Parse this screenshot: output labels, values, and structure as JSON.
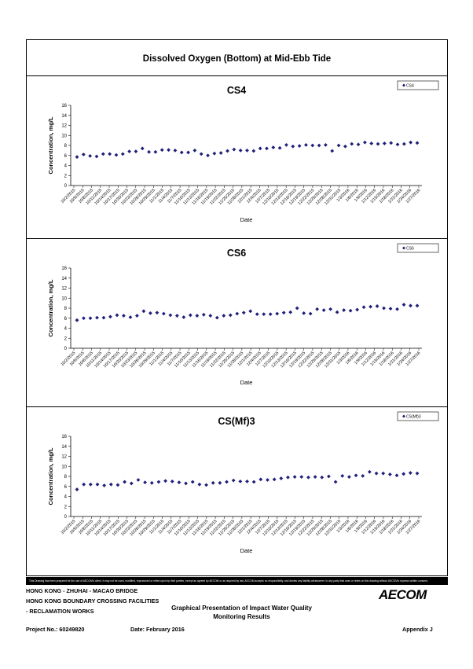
{
  "page_title": "Dissolved Oxygen (Bottom) at Mid-Ebb Tide",
  "chart_data": [
    {
      "type": "scatter",
      "title": "CS4",
      "xlabel": "Date",
      "ylabel": "Concentration, mg/L",
      "ylim": [
        0,
        16
      ],
      "yticks": [
        0,
        2,
        4,
        6,
        8,
        10,
        12,
        14,
        16
      ],
      "grid": false,
      "legend": "top-right",
      "marker_color": "#1f1f7a",
      "x_tick_labels": [
        "10/2/2015",
        "10/5/2015",
        "10/8/2015",
        "10/11/2015",
        "10/14/2015",
        "10/17/2015",
        "10/20/2015",
        "10/23/2015",
        "10/26/2015",
        "10/29/2015",
        "11/1/2015",
        "11/4/2015",
        "11/7/2015",
        "11/10/2015",
        "11/13/2015",
        "11/16/2015",
        "11/19/2015",
        "11/22/2015",
        "11/25/2015",
        "11/28/2015",
        "12/1/2015",
        "12/4/2015",
        "12/7/2015",
        "12/10/2015",
        "12/13/2015",
        "12/16/2015",
        "12/19/2015",
        "12/22/2015",
        "12/25/2015",
        "12/28/2015",
        "12/31/2015",
        "1/3/2016",
        "1/6/2016",
        "1/9/2016",
        "1/12/2016",
        "1/15/2016",
        "1/18/2016",
        "1/21/2016",
        "1/24/2016",
        "1/27/2016"
      ],
      "series": [
        {
          "name": "CS4",
          "values": [
            5.7,
            6.2,
            5.9,
            5.8,
            6.3,
            6.3,
            6.1,
            6.3,
            6.8,
            6.8,
            7.4,
            6.7,
            6.7,
            7.1,
            7.1,
            7.0,
            6.6,
            6.6,
            7.0,
            6.3,
            6.0,
            6.4,
            6.5,
            6.9,
            7.2,
            7.0,
            7.0,
            6.9,
            7.4,
            7.4,
            7.6,
            7.5,
            8.1,
            7.8,
            7.9,
            8.1,
            8.0,
            8.0,
            8.1,
            6.9,
            8.0,
            7.8,
            8.3,
            8.2,
            8.6,
            8.4,
            8.3,
            8.4,
            8.5,
            8.2,
            8.3,
            8.6,
            8.5
          ]
        }
      ]
    },
    {
      "type": "scatter",
      "title": "CS6",
      "xlabel": "Date",
      "ylabel": "Concentration, mg/L",
      "ylim": [
        0,
        16
      ],
      "yticks": [
        0,
        2,
        4,
        6,
        8,
        10,
        12,
        14,
        16
      ],
      "grid": false,
      "legend": "top-right",
      "marker_color": "#1f1f7a",
      "x_tick_labels": [
        "10/2/2015",
        "10/5/2015",
        "10/8/2015",
        "10/11/2015",
        "10/14/2015",
        "10/17/2015",
        "10/20/2015",
        "10/23/2015",
        "10/26/2015",
        "10/29/2015",
        "11/1/2015",
        "11/4/2015",
        "11/7/2015",
        "11/10/2015",
        "11/13/2015",
        "11/16/2015",
        "11/19/2015",
        "11/22/2015",
        "11/25/2015",
        "11/28/2015",
        "12/1/2015",
        "12/4/2015",
        "12/7/2015",
        "12/10/2015",
        "12/13/2015",
        "12/16/2015",
        "12/19/2015",
        "12/22/2015",
        "12/25/2015",
        "12/28/2015",
        "12/31/2015",
        "1/3/2016",
        "1/6/2016",
        "1/9/2016",
        "1/12/2016",
        "1/15/2016",
        "1/18/2016",
        "1/21/2016",
        "1/24/2016",
        "1/27/2016"
      ],
      "series": [
        {
          "name": "CS6",
          "values": [
            5.6,
            6.0,
            6.0,
            6.1,
            6.1,
            6.3,
            6.6,
            6.5,
            6.2,
            6.5,
            7.4,
            7.0,
            7.1,
            6.9,
            6.6,
            6.5,
            6.2,
            6.6,
            6.5,
            6.7,
            6.5,
            6.1,
            6.5,
            6.6,
            6.9,
            7.1,
            7.4,
            6.8,
            6.8,
            6.8,
            6.9,
            7.1,
            7.2,
            8.0,
            7.0,
            6.9,
            7.8,
            7.6,
            7.8,
            7.2,
            7.6,
            7.5,
            7.7,
            8.2,
            8.3,
            8.4,
            8.0,
            7.9,
            7.8,
            8.7,
            8.5,
            8.5
          ]
        }
      ]
    },
    {
      "type": "scatter",
      "title": "CS(Mf)3",
      "xlabel": "Date",
      "ylabel": "Concentration, mg/L",
      "ylim": [
        0,
        16
      ],
      "yticks": [
        0,
        2,
        4,
        6,
        8,
        10,
        12,
        14,
        16
      ],
      "grid": false,
      "legend": "top-right",
      "marker_color": "#1f1f7a",
      "x_tick_labels": [
        "10/2/2015",
        "10/5/2015",
        "10/8/2015",
        "10/11/2015",
        "10/14/2015",
        "10/17/2015",
        "10/20/2015",
        "10/23/2015",
        "10/26/2015",
        "10/29/2015",
        "11/1/2015",
        "11/4/2015",
        "11/7/2015",
        "11/10/2015",
        "11/13/2015",
        "11/16/2015",
        "11/19/2015",
        "11/22/2015",
        "11/25/2015",
        "11/28/2015",
        "12/1/2015",
        "12/4/2015",
        "12/7/2015",
        "12/10/2015",
        "12/13/2015",
        "12/16/2015",
        "12/19/2015",
        "12/22/2015",
        "12/25/2015",
        "12/28/2015",
        "12/31/2015",
        "1/3/2016",
        "1/6/2016",
        "1/9/2016",
        "1/12/2016",
        "1/15/2016",
        "1/18/2016",
        "1/21/2016",
        "1/24/2016",
        "1/27/2016"
      ],
      "series": [
        {
          "name": "CS(Mf)3",
          "values": [
            5.4,
            6.4,
            6.4,
            6.4,
            6.2,
            6.4,
            6.3,
            6.9,
            6.6,
            7.3,
            6.8,
            6.7,
            6.9,
            7.1,
            7.0,
            6.8,
            6.6,
            6.9,
            6.4,
            6.3,
            6.7,
            6.7,
            6.9,
            7.2,
            7.0,
            7.0,
            6.9,
            7.4,
            7.3,
            7.4,
            7.6,
            7.8,
            7.9,
            7.9,
            7.8,
            7.9,
            7.8,
            8.0,
            6.9,
            8.1,
            7.9,
            8.2,
            8.1,
            8.9,
            8.6,
            8.6,
            8.4,
            8.2,
            8.5,
            8.7,
            8.6
          ]
        }
      ]
    }
  ],
  "disclaimer": "This Drawing has been prepared for the use of AECOM's client. It may not be used, modified, reproduced or relied upon by third parties, except as agreed by AECOM or as required by law. AECOM accepts no responsibility, and denies any liability whatsoever, to any party that uses or relies on this drawing without AECOM's express written consent.",
  "footer": {
    "line1": "HONG KONG - ZHUHAI - MACAO BRIDGE",
    "line2": "HONG KONG BOUNDARY CROSSING FACILITIES",
    "line3": "- RECLAMATION WORKS",
    "report_title": "Graphical Presentation of Impact Water Quality Monitoring Results",
    "project": "Project No.: 60249820",
    "date": "Date: February 2016",
    "appendix": "Appendix J",
    "logo": "AECOM"
  }
}
